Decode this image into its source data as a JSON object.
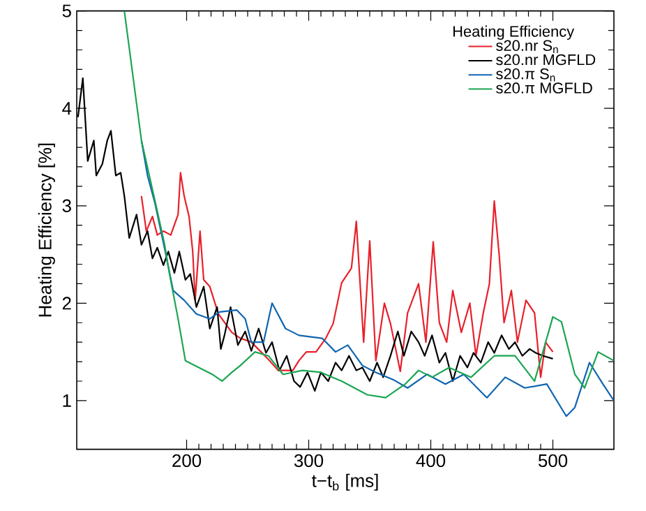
{
  "chart_data": {
    "type": "line",
    "xlabel": "t−t$_{b}$ [ms]",
    "ylabel": "Heating Efficiency [%]",
    "legend_title": "Heating Efficiency",
    "legend": "top right",
    "grid": false,
    "line_style": "solid",
    "marker": "none",
    "xlim": [
      110,
      550
    ],
    "xticks": [
      200,
      300,
      400,
      500
    ],
    "ylim": [
      0.5,
      5
    ],
    "yticks": [
      1,
      2,
      3,
      4,
      5
    ],
    "series": [
      {
        "name": "s20.nr S$_{n}$",
        "color": "#e8202a",
        "x": [
          163,
          167,
          172,
          176,
          181,
          187,
          193,
          195,
          198,
          202,
          205,
          207,
          211,
          214,
          219,
          226,
          237,
          244,
          253,
          261,
          268,
          275,
          287,
          292,
          298,
          306,
          314,
          320,
          327,
          335,
          339,
          345,
          350,
          355,
          362,
          367,
          375,
          381,
          390,
          396,
          402,
          407,
          413,
          418,
          425,
          432,
          437,
          443,
          448,
          452,
          456,
          460,
          466,
          471,
          478,
          485,
          490,
          494,
          500
        ],
        "values": [
          3.1,
          2.74,
          2.89,
          2.7,
          2.74,
          2.7,
          2.91,
          3.34,
          3.1,
          2.89,
          2.53,
          2.03,
          2.74,
          2.24,
          2.17,
          1.89,
          1.7,
          1.64,
          1.6,
          1.5,
          1.41,
          1.31,
          1.31,
          1.41,
          1.5,
          1.5,
          1.64,
          1.79,
          2.21,
          2.36,
          2.84,
          1.6,
          2.64,
          1.41,
          2.0,
          1.79,
          1.3,
          1.9,
          2.2,
          1.6,
          2.63,
          1.8,
          1.6,
          2.13,
          1.7,
          2.0,
          1.46,
          1.9,
          2.2,
          3.05,
          2.5,
          1.8,
          2.13,
          1.6,
          2.03,
          1.9,
          1.24,
          1.6,
          1.5
        ]
      },
      {
        "name": "s20.nr MGFLD",
        "color": "#000000",
        "x": [
          111,
          115,
          119,
          124,
          126,
          131,
          135,
          138,
          142,
          146,
          149,
          153,
          159,
          163,
          168,
          172,
          176,
          181,
          185,
          190,
          194,
          199,
          203,
          208,
          214,
          219,
          225,
          228,
          231,
          236,
          242,
          248,
          253,
          259,
          265,
          270,
          276,
          282,
          288,
          293,
          299,
          305,
          310,
          316,
          322,
          327,
          333,
          339,
          344,
          350,
          356,
          361,
          367,
          373,
          378,
          384,
          390,
          395,
          401,
          407,
          412,
          418,
          424,
          430,
          435,
          441,
          447,
          452,
          458,
          464,
          469,
          475,
          481,
          486,
          492,
          500
        ],
        "values": [
          3.91,
          4.31,
          3.46,
          3.67,
          3.31,
          3.43,
          3.67,
          3.77,
          3.31,
          3.34,
          3.1,
          2.67,
          2.91,
          2.6,
          2.74,
          2.46,
          2.57,
          2.39,
          2.53,
          2.31,
          2.53,
          2.24,
          2.3,
          1.96,
          2.17,
          1.74,
          1.96,
          1.53,
          1.67,
          1.96,
          1.57,
          1.71,
          1.51,
          1.74,
          1.49,
          1.6,
          1.31,
          1.46,
          1.2,
          1.14,
          1.29,
          1.1,
          1.29,
          1.2,
          1.39,
          1.31,
          1.46,
          1.31,
          1.34,
          1.2,
          1.39,
          1.24,
          1.46,
          1.71,
          1.46,
          1.71,
          1.6,
          1.46,
          1.67,
          1.39,
          1.49,
          1.2,
          1.46,
          1.34,
          1.49,
          1.39,
          1.6,
          1.49,
          1.67,
          1.53,
          1.6,
          1.46,
          1.53,
          1.49,
          1.46,
          1.43
        ]
      },
      {
        "name": "s20.π S$_{n}$",
        "color": "#1065b0",
        "x": [
          163,
          168,
          174,
          182,
          189,
          198,
          208,
          219,
          227,
          241,
          248,
          253,
          263,
          270,
          281,
          292,
          311,
          322,
          332,
          344,
          355,
          370,
          381,
          397,
          412,
          427,
          446,
          461,
          477,
          495,
          511,
          518,
          530,
          541,
          550
        ],
        "values": [
          3.67,
          3.31,
          3.03,
          2.56,
          2.13,
          2.03,
          1.89,
          1.84,
          1.91,
          1.93,
          1.84,
          1.6,
          1.6,
          2.0,
          1.74,
          1.67,
          1.64,
          1.5,
          1.57,
          1.36,
          1.29,
          1.21,
          1.13,
          1.27,
          1.17,
          1.27,
          1.03,
          1.24,
          1.13,
          1.17,
          0.84,
          0.93,
          1.39,
          1.17,
          1.0
        ]
      },
      {
        "name": "s20.π MGFLD",
        "color": "#1aa552",
        "x": [
          149,
          163,
          175,
          182,
          186,
          193,
          199,
          210,
          221,
          229,
          237,
          244,
          256,
          267,
          279,
          295,
          310,
          327,
          348,
          363,
          379,
          390,
          401,
          415,
          433,
          452,
          469,
          485,
          500,
          507,
          518,
          526,
          537,
          550
        ],
        "values": [
          5.0,
          3.67,
          3.0,
          2.6,
          2.3,
          1.84,
          1.41,
          1.34,
          1.27,
          1.2,
          1.29,
          1.36,
          1.5,
          1.46,
          1.27,
          1.31,
          1.29,
          1.2,
          1.06,
          1.03,
          1.17,
          1.31,
          1.24,
          1.34,
          1.24,
          1.46,
          1.46,
          1.2,
          1.86,
          1.81,
          1.27,
          1.13,
          1.5,
          1.41
        ]
      }
    ]
  }
}
